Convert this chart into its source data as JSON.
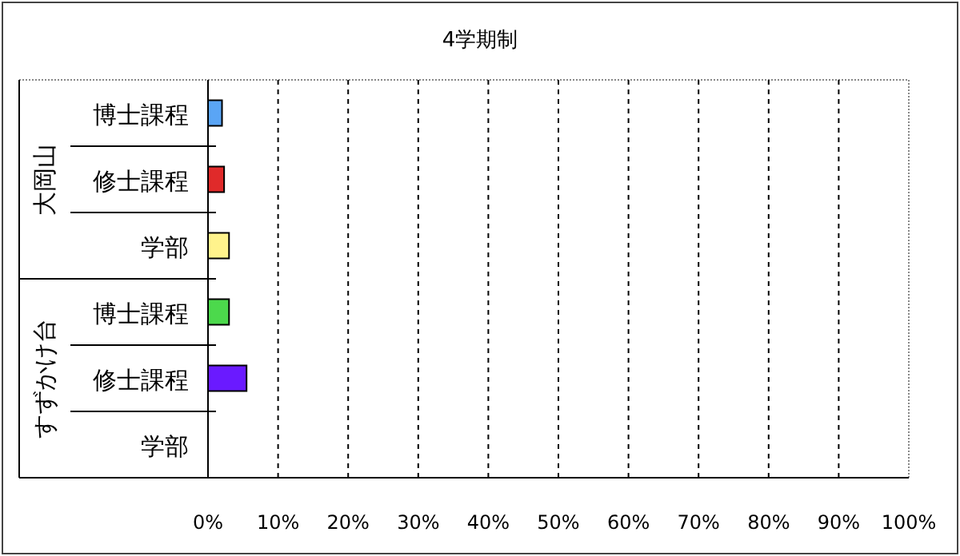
{
  "chart_data": {
    "type": "bar",
    "orientation": "horizontal",
    "title": "4学期制",
    "categories": [
      "博士課程",
      "修士課程",
      "学部",
      "博士課程",
      "修士課程",
      "学部"
    ],
    "values": [
      2,
      2.3,
      3,
      3,
      5.5,
      0
    ],
    "colors": [
      "#5aa5f5",
      "#e02a2a",
      "#fff38c",
      "#4cd94c",
      "#6a1aff",
      "#999999"
    ],
    "xlim": [
      0,
      100
    ],
    "xticks": [
      {
        "value": 0,
        "label": "0%"
      },
      {
        "value": 10,
        "label": "10%"
      },
      {
        "value": 20,
        "label": "20%"
      },
      {
        "value": 30,
        "label": "30%"
      },
      {
        "value": 40,
        "label": "40%"
      },
      {
        "value": 50,
        "label": "50%"
      },
      {
        "value": 60,
        "label": "60%"
      },
      {
        "value": 70,
        "label": "70%"
      },
      {
        "value": 80,
        "label": "80%"
      },
      {
        "value": 90,
        "label": "90%"
      },
      {
        "value": 100,
        "label": "100%"
      }
    ],
    "grid": "x",
    "annotations": [
      "大岡山",
      "すずかけ台"
    ]
  }
}
